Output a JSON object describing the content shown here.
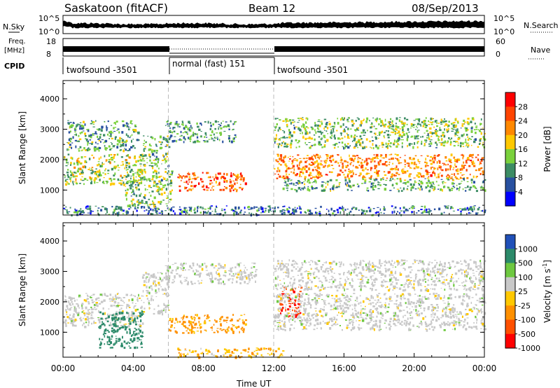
{
  "header": {
    "station": "Saskatoon (fitACF)",
    "beam": "Beam 12",
    "date": "08/Sep/2013"
  },
  "aux_panels": {
    "sky_label": "N.Sky",
    "sky_ticks": [
      "10^5",
      "10^0"
    ],
    "search_label": "N.Search",
    "search_ticks": [
      "10^5",
      "10^0"
    ],
    "freq_label_1": "Freq.",
    "freq_label_2": "[MHz]",
    "freq_ticks": [
      "18",
      "8"
    ],
    "nave_label": "Nave",
    "nave_ticks": [
      "60",
      "0"
    ],
    "cpid_label": "CPID",
    "cpid_segments": [
      {
        "label": "twofsound -3501",
        "start_hour": 0,
        "end_hour": 6
      },
      {
        "label": "normal (fast) 151",
        "start_hour": 6,
        "end_hour": 12
      },
      {
        "label": "twofsound -3501",
        "start_hour": 12,
        "end_hour": 24
      }
    ]
  },
  "chart_data": [
    {
      "type": "heatmap",
      "name": "power-panel",
      "ylabel": "Slant Range [km]",
      "xlabel": "Time UT",
      "xlim": [
        0,
        24
      ],
      "ylim": [
        180,
        4600
      ],
      "x_ticks": [
        "00:00",
        "04:00",
        "08:00",
        "12:00",
        "16:00",
        "20:00",
        "00:00"
      ],
      "y_ticks": [
        1000,
        2000,
        3000,
        4000
      ],
      "colorbar": {
        "label": "Power [dB]",
        "tick_labels": [
          "28",
          "24",
          "20",
          "16",
          "12",
          "8",
          "4"
        ],
        "colors": [
          "#ff0000",
          "#ff4400",
          "#ff8800",
          "#ffc800",
          "#7ad13c",
          "#3c8c64",
          "#2850a0",
          "#0000ff"
        ]
      },
      "regions": [
        {
          "x": [
            0.2,
            4.3
          ],
          "y": [
            2300,
            3300
          ],
          "value": 10
        },
        {
          "x": [
            0.0,
            4.5
          ],
          "y": [
            1200,
            2200
          ],
          "value": 14
        },
        {
          "x": [
            3.5,
            6.2
          ],
          "y": [
            500,
            1700
          ],
          "value": 12
        },
        {
          "x": [
            4.5,
            6.0
          ],
          "y": [
            1700,
            2800
          ],
          "value": 11
        },
        {
          "x": [
            5.8,
            9.8
          ],
          "y": [
            2600,
            3300
          ],
          "value": 9
        },
        {
          "x": [
            6.5,
            10.4
          ],
          "y": [
            1000,
            1600
          ],
          "value": 24
        },
        {
          "x": [
            12.0,
            24.0
          ],
          "y": [
            1400,
            2200
          ],
          "value": 22
        },
        {
          "x": [
            12.0,
            24.0
          ],
          "y": [
            2400,
            3400
          ],
          "value": 12
        },
        {
          "x": [
            12.5,
            24.0
          ],
          "y": [
            1000,
            1400
          ],
          "value": 10
        },
        {
          "x": [
            0.0,
            24.0
          ],
          "y": [
            200,
            500
          ],
          "value": 6
        }
      ]
    },
    {
      "type": "heatmap",
      "name": "velocity-panel",
      "ylabel": "Slant Range [km]",
      "xlabel": "Time UT",
      "xlim": [
        0,
        24
      ],
      "ylim": [
        180,
        4600
      ],
      "x_ticks": [
        "00:00",
        "04:00",
        "08:00",
        "12:00",
        "16:00",
        "20:00",
        "00:00"
      ],
      "y_ticks": [
        1000,
        2000,
        3000,
        4000
      ],
      "colorbar": {
        "label": "Velocity",
        "unit": "[m s",
        "unit_exp": "-1",
        "unit_close": "]",
        "tick_labels": [
          "1000",
          "500",
          "100",
          "25",
          "-25",
          "-100",
          "-500",
          "-1000"
        ],
        "colors": [
          "#2050b8",
          "#2c8a6a",
          "#6ec840",
          "#c8c8c8",
          "#ffc800",
          "#ff9000",
          "#ff5000",
          "#ff0000"
        ]
      },
      "regions": [
        {
          "x": [
            0.0,
            4.5
          ],
          "y": [
            1200,
            2300
          ],
          "value": 0,
          "color": "gray"
        },
        {
          "x": [
            2.0,
            4.5
          ],
          "y": [
            500,
            1700
          ],
          "value": 300,
          "color": "blue-green"
        },
        {
          "x": [
            4.5,
            6.0
          ],
          "y": [
            1600,
            3000
          ],
          "value": 0,
          "color": "gray"
        },
        {
          "x": [
            5.8,
            11.0
          ],
          "y": [
            2600,
            3300
          ],
          "value": 0,
          "color": "gray"
        },
        {
          "x": [
            6.0,
            10.4
          ],
          "y": [
            1000,
            1600
          ],
          "value": -150,
          "color": "orange"
        },
        {
          "x": [
            12.3,
            13.6
          ],
          "y": [
            1500,
            2500
          ],
          "value": -600,
          "color": "red"
        },
        {
          "x": [
            12.0,
            24.0
          ],
          "y": [
            1100,
            2300
          ],
          "value": 0,
          "color": "gray"
        },
        {
          "x": [
            12.0,
            24.0
          ],
          "y": [
            2400,
            3400
          ],
          "value": 0,
          "color": "gray"
        },
        {
          "x": [
            6.5,
            12.5
          ],
          "y": [
            200,
            500
          ],
          "value": -80,
          "color": "yellow"
        }
      ]
    }
  ]
}
